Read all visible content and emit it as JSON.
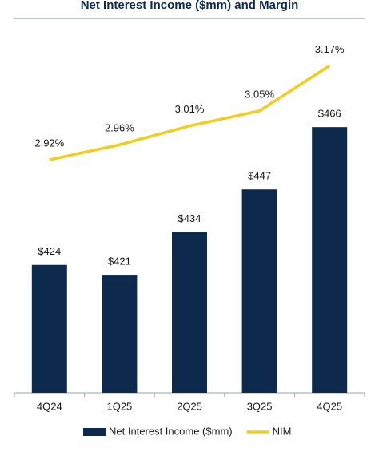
{
  "chart_data": {
    "type": "bar_line",
    "title": "Net Interest Income ($mm) and Margin",
    "categories": [
      "4Q24",
      "1Q25",
      "2Q25",
      "3Q25",
      "4Q25"
    ],
    "series": [
      {
        "name": "Net Interest Income ($mm)",
        "type": "bar",
        "color": "#0d2a4c",
        "values": [
          424,
          421,
          434,
          447,
          466
        ],
        "value_labels": [
          "$424",
          "$421",
          "$434",
          "$447",
          "$466"
        ]
      },
      {
        "name": "NIM",
        "type": "line",
        "axis": "y2",
        "color": "#f2cd1f",
        "values": [
          2.92,
          2.96,
          3.01,
          3.05,
          3.17
        ],
        "value_labels": [
          "2.92%",
          "2.96%",
          "3.01%",
          "3.05%",
          "3.17%"
        ]
      }
    ],
    "ylim": [
      385,
      495
    ],
    "y2lim": [
      2.3,
      3.26
    ],
    "legend": "bottom"
  }
}
